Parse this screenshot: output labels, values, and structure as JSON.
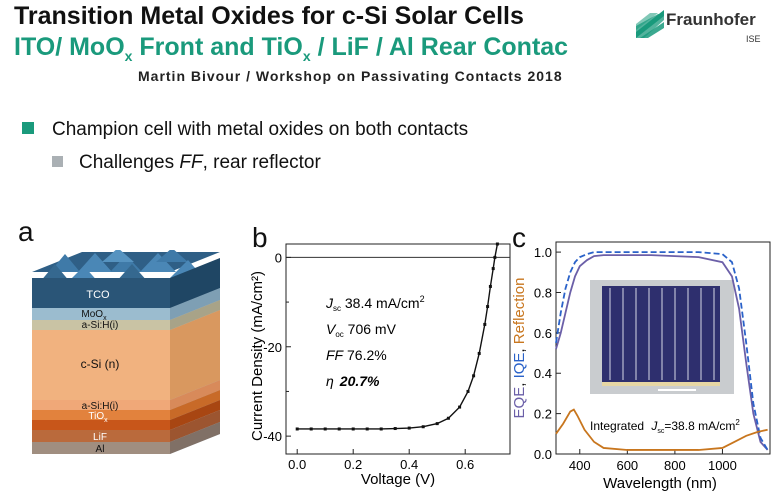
{
  "header": {
    "title_line1": "Transition Metal Oxides for c-Si Solar Cells",
    "title_line2_a": "ITO/ MoO",
    "title_line2_sub1": "x",
    "title_line2_b": " Front and TiO",
    "title_line2_sub2": "x",
    "title_line2_c": " / LiF / Al  Rear Contac",
    "subtitle": "Martin Bivour / Workshop on Passivating Contacts 2018"
  },
  "logo": {
    "name": "Fraunhofer",
    "sub": "ISE",
    "color": "#1a9a7c"
  },
  "bullets": {
    "main": "Champion cell with metal oxides on both contacts",
    "sub_a": "Challenges ",
    "sub_ff": "FF",
    "sub_b": ", rear reflector"
  },
  "panel_a": {
    "label": "a",
    "layers": [
      "TCO",
      "MoO",
      "x",
      "a-Si:H(i)",
      "c-Si (n)",
      "a-Si:H(i)",
      "TiO",
      "x",
      "LiF",
      "Al"
    ]
  },
  "panel_b": {
    "label": "b",
    "xlabel": "Voltage (V)",
    "ylabel": "Current Density (mA/cm²)",
    "xticks": [
      "0.0",
      "0.2",
      "0.4",
      "0.6"
    ],
    "yticks": [
      "0",
      "-20",
      "-40"
    ],
    "jsc_sym": "J",
    "jsc_sub": "sc",
    "jsc_val": " 38.4 mA/cm",
    "jsc_sup": "2",
    "voc_sym": "V",
    "voc_sub": "oc",
    "voc_val": " 706 mV",
    "ff_sym": "FF",
    "ff_val": " 76.2%",
    "eta_sym": "η",
    "eta_val": "20.7%"
  },
  "panel_c": {
    "label": "c",
    "xlabel": "Wavelength (nm)",
    "xticks": [
      "400",
      "600",
      "800",
      "1000"
    ],
    "yticks": [
      "0.0",
      "0.2",
      "0.4",
      "0.6",
      "0.8",
      "1.0"
    ],
    "ylabel_eqe": "EQE",
    "ylabel_comma1": ", ",
    "ylabel_iqe": "IQE",
    "ylabel_comma2": ", ",
    "ylabel_refl": "Reflection",
    "integrated_pre": "Integrated ",
    "integrated_sym": "J",
    "integrated_sub": "sc",
    "integrated_post": "=38.8 mA/cm",
    "integrated_sup": "2"
  },
  "chart_data": [
    {
      "type": "line",
      "xlabel": "Voltage (V)",
      "ylabel": "Current Density (mA/cm²)",
      "xlim": [
        -0.04,
        0.76
      ],
      "ylim": [
        -44,
        3
      ],
      "series": [
        {
          "x": [
            0.0,
            0.05,
            0.1,
            0.15,
            0.2,
            0.25,
            0.3,
            0.35,
            0.4,
            0.45,
            0.5,
            0.54,
            0.58,
            0.61,
            0.63,
            0.65,
            0.67,
            0.68,
            0.69,
            0.7,
            0.706,
            0.715
          ],
          "y": [
            -38.4,
            -38.4,
            -38.4,
            -38.4,
            -38.4,
            -38.4,
            -38.4,
            -38.3,
            -38.2,
            -37.9,
            -37.2,
            -36.0,
            -33.5,
            -30.0,
            -26.5,
            -21.5,
            -15.0,
            -11.0,
            -6.5,
            -2.5,
            0.0,
            3.0
          ]
        }
      ]
    },
    {
      "type": "line",
      "xlabel": "Wavelength (nm)",
      "xlim": [
        300,
        1200
      ],
      "ylim": [
        0.0,
        1.05
      ],
      "series": [
        {
          "name": "EQE",
          "color": "#6b5fa8",
          "x": [
            300,
            320,
            340,
            360,
            380,
            400,
            430,
            460,
            500,
            600,
            700,
            800,
            900,
            1000,
            1040,
            1070,
            1100,
            1130,
            1160,
            1190
          ],
          "y": [
            0.52,
            0.6,
            0.7,
            0.8,
            0.88,
            0.93,
            0.96,
            0.98,
            0.985,
            0.985,
            0.985,
            0.98,
            0.975,
            0.95,
            0.88,
            0.72,
            0.45,
            0.2,
            0.06,
            0.02
          ]
        },
        {
          "name": "IQE",
          "color": "#2a62c9",
          "x": [
            300,
            320,
            340,
            360,
            380,
            400,
            430,
            460,
            500,
            600,
            700,
            800,
            900,
            1000,
            1040,
            1070,
            1100,
            1130,
            1160,
            1190
          ],
          "y": [
            0.55,
            0.7,
            0.82,
            0.9,
            0.95,
            0.975,
            0.99,
            1.0,
            1.0,
            1.0,
            1.0,
            1.0,
            1.0,
            0.99,
            0.95,
            0.82,
            0.55,
            0.25,
            0.08,
            0.02
          ]
        },
        {
          "name": "Reflection",
          "color": "#c8761e",
          "x": [
            300,
            330,
            360,
            375,
            390,
            420,
            460,
            500,
            600,
            700,
            800,
            900,
            1000,
            1050,
            1100,
            1150,
            1190
          ],
          "y": [
            0.1,
            0.15,
            0.21,
            0.22,
            0.19,
            0.12,
            0.06,
            0.03,
            0.02,
            0.02,
            0.02,
            0.02,
            0.03,
            0.06,
            0.09,
            0.11,
            0.12
          ]
        }
      ]
    }
  ]
}
